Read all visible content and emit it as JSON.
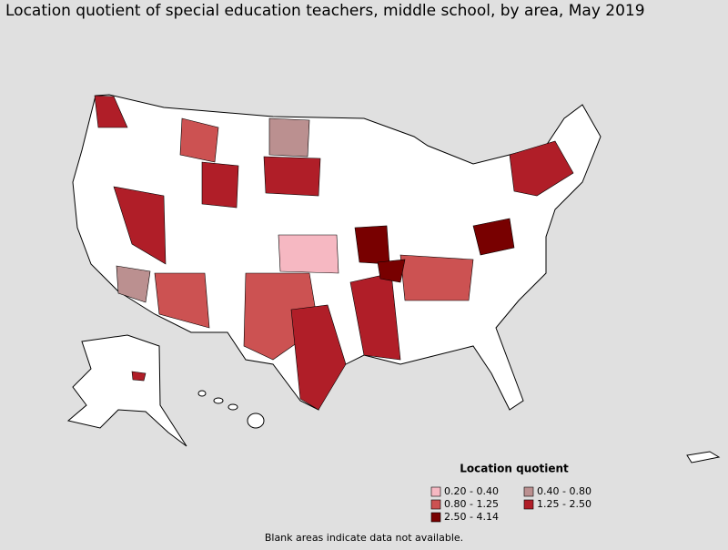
{
  "header": {
    "title": "Location quotient of special education teachers, middle school, by area, May 2019"
  },
  "legend": {
    "title": "Location quotient",
    "items": [
      {
        "label": "0.20 - 0.40",
        "color": "#f6b8c2"
      },
      {
        "label": "0.40 - 0.80",
        "color": "#bb9090"
      },
      {
        "label": "0.80 - 1.25",
        "color": "#cc5252"
      },
      {
        "label": "1.25 - 2.50",
        "color": "#b01e28"
      },
      {
        "label": "2.50 - 4.14",
        "color": "#780000"
      }
    ]
  },
  "footnote": "Blank areas indicate data not available."
}
